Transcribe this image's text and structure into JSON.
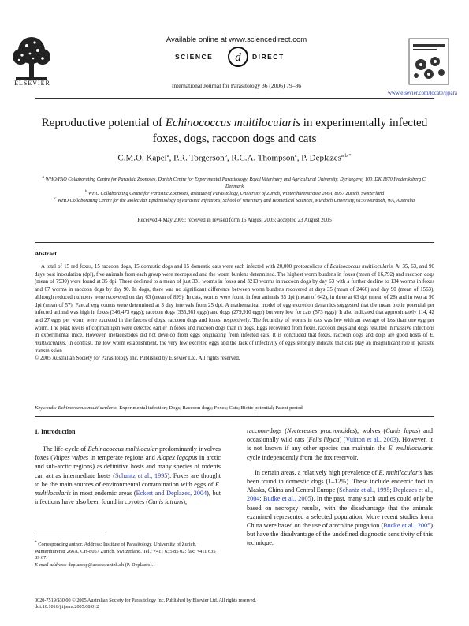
{
  "header": {
    "availability": "Available online at www.sciencedirect.com",
    "publisher": "ELSEVIER",
    "sd_left": "SCIENCE",
    "sd_right": "DIRECT",
    "journal": "International Journal for Parasitology 36 (2006) 79–86",
    "url": "www.elsevier.com/locate/ijpara"
  },
  "title": {
    "pre": "Reproductive potential of ",
    "species": "Echinococcus multilocularis",
    "post": " in experimentally infected foxes, dogs, raccoon dogs and cats"
  },
  "authors": {
    "a1": "C.M.O. Kapel",
    "s1": "a",
    "a2": "P.R. Torgerson",
    "s2": "b",
    "a3": "R.C.A. Thompson",
    "s3": "c",
    "a4": "P. Deplazes",
    "s4": "a,b,",
    "sep": ", "
  },
  "affiliations": {
    "a": "WHO/FAO Collaborating Centre for Parasitic Zoonoses, Danish Centre for Experimental Parasitology, Royal Veterinary and Agricultural University, Dyrlaegevej 100, DK 1870 Frederiksberg C, Denmark",
    "b": "WHO Collaborating Centre for Parasitic Zoonoses, Institute of Parasitology, University of Zurich, Winterthurerstrasse 266A, 8057 Zurich, Switzerland",
    "c": "WHO Collaborating Centre for the Molecular Epidemiology of Parasitic Infections, School of Veterinary and Biomedical Sciences, Murdoch University, 6150 Murdoch, WA, Australia",
    "marker_a": "a",
    "marker_b": "b",
    "marker_c": "c"
  },
  "received": "Received 4 May 2005; received in revised form 16 August 2005; accepted 23 August 2005",
  "abstract": {
    "heading": "Abstract",
    "p1_a": "A total of 15 red foxes, 15 raccoon dogs, 15 domestic dogs and 15 domestic cats were each infected with 20,000 protoscolices of ",
    "p1_species": "Echinococcus multilocularis",
    "p1_b": ". At 35, 63, and 90 days post inoculation (dpi), five animals from each group were necropsied and the worm burdens determined. The highest worm burdens in foxes (mean of 16,792) and raccoon dogs (mean of 7930) were found at 35 dpi. These declined to a mean of just 331 worms in foxes and 3213 worms in raccoon dogs by day 63 with a further decline to 134 worms in foxes and 67 worms in raccoon dogs by day 90. In dogs, there was no significant difference between worm burdens recovered at days 35 (mean of 2466) and day 90 (mean of 1563), although reduced numbers were recovered on day 63 (mean of 899). In cats, worms were found in four animals 35 dpi (mean of 642), in three at 63 dpi (mean of 28) and in two at 90 dpi (mean of 57). Faecal egg counts were determined at 3 day intervals from 25 dpi. A mathematical model of egg excretion dynamics suggested that the mean biotic potential per infected animal was high in foxes (346,473 eggs); raccoon dogs (335,361 eggs) and dogs (279,910 eggs) but very low for cats (573 eggs). It also indicated that approximately 114, 42 and 27 eggs per worm were excreted in the faeces of dogs, raccoon dogs and foxes, respectively. The fecundity of worms in cats was low with an average of less than one egg per worm. The peak levels of coproantigen were detected earlier in foxes and raccoon dogs than in dogs. Eggs recovered from foxes, raccoon dogs and dogs resulted in massive infections in experimental mice. However, metacestodes did not develop from eggs originating from infected cats. It is concluded that foxes, raccoon dogs and dogs are good hosts of ",
    "p1_species2": "E. multilocularis",
    "p1_c": ". In contrast, the low worm establishment, the very few excreted eggs and the lack of infectivity of eggs strongly indicate that cats play an insignificant role in parasite transmission.",
    "copyright": "© 2005 Australian Society for Parasitology Inc. Published by Elsevier Ltd. All rights reserved."
  },
  "keywords": {
    "label": "Keywords: ",
    "species": "Echinococcus multilocularis",
    "rest": "; Experimental infection; Dogs; Raccoon dogs; Foxes; Cats; Biotic potential; Patent period"
  },
  "intro": {
    "heading": "1. Introduction",
    "l1": "The life-cycle of ",
    "l1_sp": "Echinococcus multilocular",
    "l1_b": " predominantly involves foxes (",
    "l1_sp2": "Vulpes vulpes",
    "l1_c": " in temperate regions and ",
    "l1_sp3": "Alopex lagopus",
    "l1_d": " in arctic and sub-arctic regions) as definitive hosts and many species of rodents can act as intermediate hosts (",
    "ref1": "Schantz et al., 1995",
    "l1_e": "). Foxes are thought to be the main sources of environmental contamination with eggs of ",
    "l1_sp4": "E. multilocularis",
    "l1_f": " in most endemic areas (",
    "ref2": "Eckert and Deplazes, 2004",
    "l1_g": "), but infections have also been found in coyotes (",
    "l1_sp5": "Canis latrans",
    "l1_h": "),",
    "r1_a": "raccoon-dogs (",
    "r1_sp1": "Nyctereutes procyonoides",
    "r1_b": "), wolves (",
    "r1_sp2": "Canis lupus",
    "r1_c": ") and occasionally wild cats (",
    "r1_sp3": "Felis libyca",
    "r1_d": ") (",
    "ref3": "Vuitton et al., 2003",
    "r1_e": "). However, it is not known if any other species can maintain the ",
    "r1_sp4": "E. multilocularis",
    "r1_f": " cycle independently from the fox reservoir.",
    "r2_a": "In certain areas, a relatively high prevalence of ",
    "r2_sp": "E. multilocularis",
    "r2_b": " has been found in domestic dogs (1–12%). These include endemic foci in Alaska, China and Central Europe (",
    "ref4": "Schantz et al., 1995",
    "r2_sep": "; ",
    "ref5": "Deplazes et al., 2004",
    "ref6": "Budke et al., 2005",
    "r2_c": "). In the past, many such studies could only be based on necropsy results, with the disadvantage that the animals examined represented a selected population. More recent studies from China were based on the use of arecoline purgation (",
    "ref7": "Budke et al., 2005",
    "r2_d": ") but have the disadvantage of the undefined diagnostic sensitivity of this technique."
  },
  "footnote": {
    "star": "*",
    "corresponding": " Corresponding author. Address: Institute of Parasitology, University of Zurich, Winterthurerstr 266A, CH-8057 Zurich, Switzerland. Tel.: +411 635 85 02; fax: +411 635 89 07.",
    "email_label": "E-mail address: ",
    "email": "deplazesp@access.unizh.ch (P. Deplazes)."
  },
  "bottom": {
    "issn": "0020-7519/$30.00 © 2005 Australian Society for Parasitology Inc. Published by Elsevier Ltd. All rights reserved.",
    "doi": "doi:10.1016/j.ijpara.2005.08.012"
  }
}
